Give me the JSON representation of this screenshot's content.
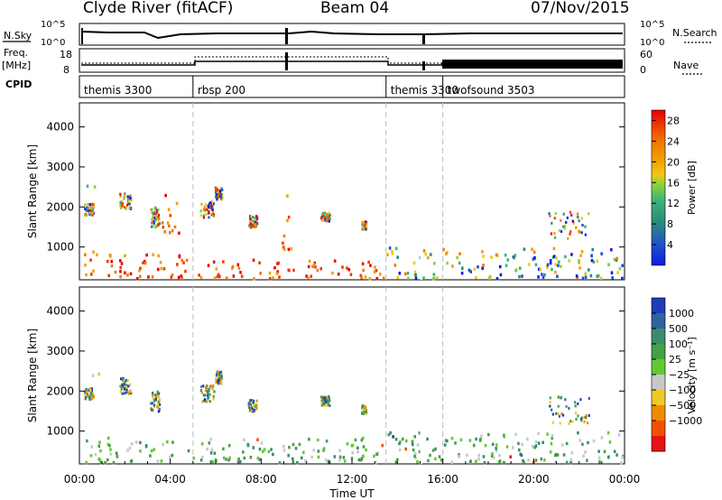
{
  "header": {
    "station": "Clyde River (fitACF)",
    "beam": "Beam 04",
    "date": "07/Nov/2015"
  },
  "noise_panel": {
    "left_label": "N.Sky",
    "left_ticks": [
      "10^5",
      "10^0"
    ],
    "right_label": "N.Search",
    "right_ticks": [
      "10^5",
      "10^0"
    ]
  },
  "freq_panel": {
    "left_label_top": "Freq.",
    "left_label_bottom": "[MHz]",
    "left_ticks": [
      "18",
      "8"
    ],
    "right_label": "Nave",
    "right_ticks": [
      "60",
      "0"
    ]
  },
  "cpid_panel": {
    "label": "CPID",
    "modes": [
      {
        "name": "themis 3300",
        "start_hour": 0
      },
      {
        "name": "rbsp 200",
        "start_hour": 5.0
      },
      {
        "name": "themis 3300",
        "start_hour": 13.5
      },
      {
        "name": "twofsound 3503",
        "start_hour": 16.0
      }
    ]
  },
  "chart_data": [
    {
      "type": "heatmap",
      "title": "Power",
      "ylabel": "Slant Range [km]",
      "xlabel": "",
      "ylim": [
        180,
        4600
      ],
      "yticks": [
        "1000",
        "2000",
        "3000",
        "4000"
      ],
      "colorbar": {
        "label": "Power [dB]",
        "ticks": [
          "4",
          "8",
          "12",
          "16",
          "20",
          "24",
          "28"
        ],
        "range": [
          0,
          30
        ],
        "colors": [
          "#0a1ee6",
          "#1e50c8",
          "#2c8c7a",
          "#3cb478",
          "#8cd23c",
          "#f0c814",
          "#f0a000",
          "#f07800",
          "#f03c00",
          "#e60000"
        ]
      },
      "patches": [
        {
          "t0": 0.2,
          "t1": 4.9,
          "r0": 180,
          "r1": 850,
          "level": "high"
        },
        {
          "t0": 5.0,
          "t1": 13.4,
          "r0": 180,
          "r1": 650,
          "level": "high"
        },
        {
          "t0": 13.5,
          "t1": 23.9,
          "r0": 180,
          "r1": 950,
          "level": "mixed"
        },
        {
          "t0": 0.3,
          "t1": 0.9,
          "r0": 2350,
          "r1": 2500,
          "level": "mid"
        },
        {
          "t0": 3.6,
          "t1": 4.4,
          "r0": 1300,
          "r1": 2300,
          "level": "high"
        },
        {
          "t0": 8.9,
          "t1": 9.3,
          "r0": 900,
          "r1": 2300,
          "level": "high"
        }
      ]
    },
    {
      "type": "heatmap",
      "title": "Velocity",
      "ylabel": "Slant Range [km]",
      "xlabel": "Time UT",
      "ylim": [
        180,
        4600
      ],
      "yticks": [
        "1000",
        "2000",
        "3000",
        "4000"
      ],
      "xticks": [
        "00:00",
        "04:00",
        "08:00",
        "12:00",
        "16:00",
        "20:00",
        "00:00"
      ],
      "colorbar": {
        "label": "Velocity [m s⁻¹]",
        "ticks": [
          "1000",
          "500",
          "100",
          "25",
          "−25",
          "−100",
          "−500",
          "−1000"
        ],
        "colors": [
          "#1e3cb4",
          "#2c64a0",
          "#3c8c6e",
          "#46a046",
          "#64c832",
          "#c8c8c8",
          "#f0c828",
          "#f08c00",
          "#f05000",
          "#e61414"
        ]
      },
      "patches": [
        {
          "t0": 0.2,
          "t1": 13.4,
          "r0": 180,
          "r1": 800,
          "level": "green"
        },
        {
          "t0": 13.5,
          "t1": 23.9,
          "r0": 180,
          "r1": 950,
          "level": "green"
        },
        {
          "t0": 0.3,
          "t1": 0.9,
          "r0": 2350,
          "r1": 2500,
          "level": "orange"
        }
      ]
    }
  ],
  "mode_change_hours": [
    5.0,
    13.5,
    16.0
  ]
}
